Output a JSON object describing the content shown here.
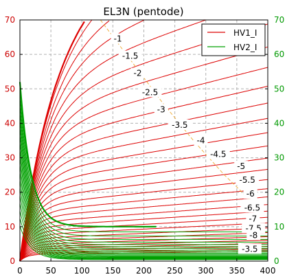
{
  "chart_data": {
    "type": "line",
    "title": "EL3N (pentode)",
    "xlabel": "",
    "ylabel": "",
    "xlim": [
      0,
      400
    ],
    "ylim": [
      0,
      70
    ],
    "x_ticks": [
      0,
      50,
      100,
      150,
      200,
      250,
      300,
      350,
      400
    ],
    "y_ticks": [
      0,
      10,
      20,
      30,
      40,
      50,
      60,
      70
    ],
    "y2_ticks": [
      0,
      10,
      20,
      30,
      40,
      50,
      60,
      70
    ],
    "grid": true,
    "legend_position": "top-right",
    "colors": {
      "hv1": "#dd0000",
      "hv2": "#00a000",
      "loadline": "#f0b040",
      "axis_left": "#cc0000",
      "axis_right": "#009900"
    },
    "series": [
      {
        "name": "HV1_I",
        "color": "#dd0000"
      },
      {
        "name": "HV2_I",
        "color": "#00a000"
      }
    ],
    "curve_labels": [
      {
        "text": "-1",
        "x": 158,
        "y": 64.5
      },
      {
        "text": "-1.5",
        "x": 178,
        "y": 59.5
      },
      {
        "text": "-2",
        "x": 190,
        "y": 54.5
      },
      {
        "text": "-2.5",
        "x": 210,
        "y": 49
      },
      {
        "text": "-3",
        "x": 228,
        "y": 44
      },
      {
        "text": "-3.5",
        "x": 258,
        "y": 39.5
      },
      {
        "text": "-4",
        "x": 292,
        "y": 35
      },
      {
        "text": "-4.5",
        "x": 320,
        "y": 31
      },
      {
        "text": "-5",
        "x": 357,
        "y": 27.5
      },
      {
        "text": "-5.5",
        "x": 367,
        "y": 23.5
      },
      {
        "text": "-6",
        "x": 372,
        "y": 19.5
      },
      {
        "text": "-6.5",
        "x": 375,
        "y": 15.5
      },
      {
        "text": "-7",
        "x": 376,
        "y": 12.3
      },
      {
        "text": "-7.5",
        "x": 377,
        "y": 9.5
      },
      {
        "text": "-8",
        "x": 377,
        "y": 7.5
      },
      {
        "text": "-3.5",
        "x": 371,
        "y": 3.5
      }
    ],
    "hv1_currents": [
      72,
      68.5,
      62.5,
      57,
      51.5,
      46.5,
      42,
      38,
      34.3,
      31,
      28,
      25.2,
      22.6,
      20.2,
      18,
      16,
      14.2,
      12.6,
      11.1,
      9.8,
      8.6,
      7.5,
      6.5,
      5.6,
      4.8,
      4.1,
      3.5,
      2.9,
      2.4,
      2.0
    ],
    "hv2_currents": [
      10,
      8.5,
      7.3,
      6.3,
      5.5,
      4.8,
      4.2,
      3.7,
      3.2,
      2.8,
      2.4,
      2.1,
      1.8,
      1.55,
      1.3,
      1.1,
      0.9,
      0.75,
      0.6,
      0.45
    ],
    "loadline": [
      [
        130,
        70
      ],
      [
        180,
        58
      ],
      [
        230,
        46
      ],
      [
        280,
        35
      ],
      [
        330,
        25
      ],
      [
        370,
        18
      ]
    ]
  }
}
